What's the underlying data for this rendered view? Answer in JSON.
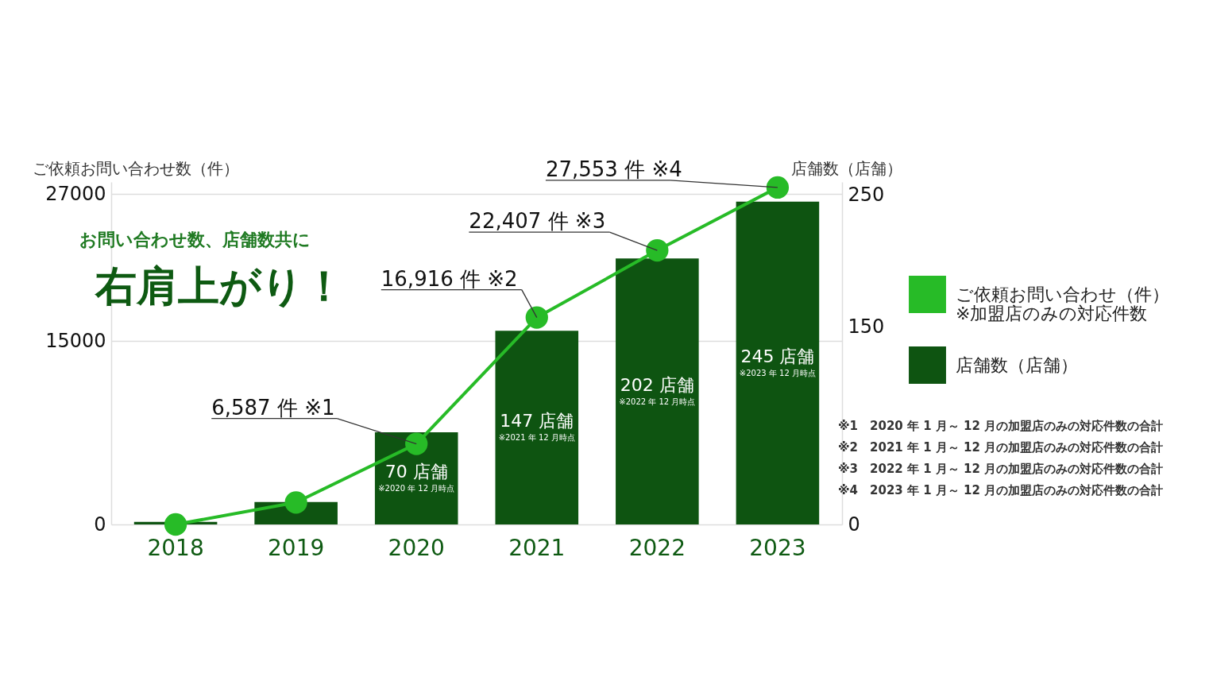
{
  "chart_data": {
    "type": "bar",
    "title": "右肩上がり！",
    "subtitle": "お問い合わせ数、店舗数共に",
    "ylabel": "ご依頼お問い合わせ数（件）",
    "y2label": "店舗数（店舗）",
    "categories": [
      "2018",
      "2019",
      "2020",
      "2021",
      "2022",
      "2023"
    ],
    "series": [
      {
        "name": "ご依頼お問い合わせ（件）\n※加盟店のみの対応件数",
        "type": "line",
        "color": "#27bb27",
        "values": [
          0,
          1800,
          6587,
          16916,
          22407,
          27553
        ]
      },
      {
        "name": "店舗数（店舗）",
        "axis": "y2",
        "color": "#0e5411",
        "values": [
          2,
          17,
          70,
          147,
          202,
          245
        ],
        "value_labels": [
          null,
          null,
          "70 店舗",
          "147 店舗",
          "202 店舗",
          "245 店舗"
        ]
      }
    ],
    "ylim": [
      0,
      28000
    ],
    "yticks": [
      0,
      15000,
      27000
    ],
    "y2lim": [
      0,
      260
    ],
    "y2ticks": [
      0,
      150,
      250
    ],
    "grid": "y",
    "legend": "right",
    "marker": "circle",
    "line_style": "solid",
    "annotations": [
      {
        "text": "6,587 件 ※1",
        "x": "2020",
        "y": 6587
      },
      {
        "text": "16,916 件 ※2",
        "x": "2021",
        "y": 16916
      },
      {
        "text": "22,407 件 ※3",
        "x": "2022",
        "y": 22407
      },
      {
        "text": "27,553 件 ※4",
        "x": "2023",
        "y": 27553
      },
      "※2020 年 12 月時点",
      "※2021 年 12 月時点",
      "※2022 年 12 月時点",
      "※2023 年 12 月時点",
      "※1　2020 年 1 月～ 12 月の加盟店のみの対応件数の合計",
      "※2　2021 年 1 月～ 12 月の加盟店のみの対応件数の合計",
      "※3　2022 年 1 月～ 12 月の加盟店のみの対応件数の合計",
      "※4　2023 年 1 月～ 12 月の加盟店のみの対応件数の合計"
    ]
  }
}
